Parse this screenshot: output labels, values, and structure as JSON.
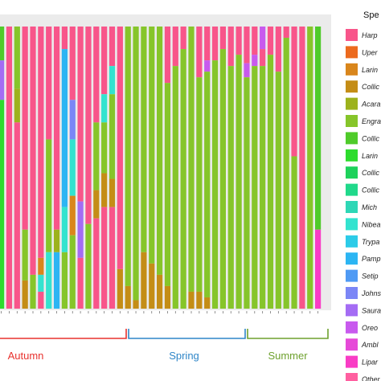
{
  "chart_data": {
    "type": "stacked-bar",
    "ylim": [
      0,
      1
    ],
    "grid": true,
    "legend_placement": "right",
    "legend": {
      "title": "Spe",
      "entries": [
        {
          "label": "Harp",
          "color": "#F8558A"
        },
        {
          "label": "Uper",
          "color": "#EC6A1E"
        },
        {
          "label": "Larin",
          "color": "#D9861C"
        },
        {
          "label": "Collic",
          "color": "#C48D16"
        },
        {
          "label": "Acara",
          "color": "#9DB21C"
        },
        {
          "label": "Engra",
          "color": "#86C52A"
        },
        {
          "label": "Collic",
          "color": "#4FCB2A"
        },
        {
          "label": "Larin",
          "color": "#2DDC2D"
        },
        {
          "label": "Collic",
          "color": "#1ED25B"
        },
        {
          "label": "Collic",
          "color": "#20D98B"
        },
        {
          "label": "Mich",
          "color": "#2ED7B6"
        },
        {
          "label": "Nibea",
          "color": "#33E3CF"
        },
        {
          "label": "Trypa",
          "color": "#2CCBE8"
        },
        {
          "label": "Pamp",
          "color": "#2CB5F3"
        },
        {
          "label": "Setip",
          "color": "#4F9AF4"
        },
        {
          "label": "Johns",
          "color": "#7B86F6"
        },
        {
          "label": "Saura",
          "color": "#A46CF4"
        },
        {
          "label": "Oreo",
          "color": "#C85AEE"
        },
        {
          "label": "Ambl",
          "color": "#E64AD8"
        },
        {
          "label": "Lipar",
          "color": "#F93CC5"
        },
        {
          "label": "Other",
          "color": "#FF5FA0"
        }
      ]
    },
    "bars": [
      {
        "segments": [
          [
            6,
            0.12
          ],
          [
            16,
            0.14
          ],
          [
            7,
            0.74
          ]
        ]
      },
      {
        "segments": [
          [
            0,
            1
          ]
        ]
      },
      {
        "segments": [
          [
            5,
            0.22
          ],
          [
            4,
            0.12
          ],
          [
            0,
            0.66
          ]
        ]
      },
      {
        "segments": [
          [
            0,
            0.72
          ],
          [
            5,
            0.18
          ],
          [
            3,
            0.1
          ]
        ]
      },
      {
        "segments": [
          [
            0,
            0.88
          ],
          [
            5,
            0.12
          ]
        ]
      },
      {
        "segments": [
          [
            0,
            0.82
          ],
          [
            2,
            0.06
          ],
          [
            11,
            0.06
          ],
          [
            0,
            0.06
          ]
        ]
      },
      {
        "segments": [
          [
            0,
            0.4
          ],
          [
            5,
            0.4
          ],
          [
            11,
            0.2
          ]
        ]
      },
      {
        "segments": [
          [
            0,
            0.72
          ],
          [
            4,
            0.08
          ],
          [
            13,
            0.2
          ]
        ]
      },
      {
        "segments": [
          [
            0,
            0.08
          ],
          [
            13,
            0.56
          ],
          [
            11,
            0.16
          ],
          [
            5,
            0.2
          ]
        ]
      },
      {
        "segments": [
          [
            0,
            0.26
          ],
          [
            15,
            0.14
          ],
          [
            11,
            0.2
          ],
          [
            2,
            0.14
          ],
          [
            5,
            0.26
          ]
        ]
      },
      {
        "segments": [
          [
            0,
            0.62
          ],
          [
            16,
            0.2
          ],
          [
            0,
            0.18
          ]
        ]
      },
      {
        "segments": [
          [
            0,
            0.7
          ],
          [
            5,
            0.3
          ]
        ]
      },
      {
        "segments": [
          [
            0,
            0.34
          ],
          [
            5,
            0.24
          ],
          [
            3,
            0.1
          ],
          [
            0,
            0.32
          ]
        ]
      },
      {
        "segments": [
          [
            0,
            0.24
          ],
          [
            11,
            0.1
          ],
          [
            5,
            0.18
          ],
          [
            3,
            0.12
          ],
          [
            0,
            0.36
          ]
        ]
      },
      {
        "segments": [
          [
            0,
            0.14
          ],
          [
            11,
            0.1
          ],
          [
            5,
            0.3
          ],
          [
            3,
            0.1
          ],
          [
            0,
            0.36
          ]
        ]
      },
      {
        "segments": [
          [
            0,
            0.86
          ],
          [
            3,
            0.14
          ]
        ]
      },
      {
        "segments": [
          [
            5,
            0.92
          ],
          [
            3,
            0.08
          ]
        ]
      },
      {
        "segments": [
          [
            5,
            0.97
          ],
          [
            3,
            0.03
          ]
        ]
      },
      {
        "segments": [
          [
            5,
            0.8
          ],
          [
            3,
            0.2
          ]
        ]
      },
      {
        "segments": [
          [
            5,
            0.84
          ],
          [
            3,
            0.16
          ]
        ]
      },
      {
        "segments": [
          [
            5,
            0.88
          ],
          [
            3,
            0.12
          ]
        ]
      },
      {
        "segments": [
          [
            0,
            0.2
          ],
          [
            5,
            0.72
          ],
          [
            3,
            0.08
          ]
        ]
      },
      {
        "segments": [
          [
            0,
            0.14
          ],
          [
            5,
            0.86
          ]
        ]
      },
      {
        "segments": [
          [
            0,
            0.08
          ],
          [
            5,
            0.92
          ]
        ]
      },
      {
        "segments": [
          [
            5,
            0.94
          ],
          [
            3,
            0.06
          ]
        ]
      },
      {
        "segments": [
          [
            0,
            0.18
          ],
          [
            5,
            0.76
          ],
          [
            3,
            0.06
          ]
        ]
      },
      {
        "segments": [
          [
            0,
            0.12
          ],
          [
            17,
            0.04
          ],
          [
            5,
            0.8
          ],
          [
            3,
            0.04
          ]
        ]
      },
      {
        "segments": [
          [
            0,
            0.12
          ],
          [
            5,
            0.88
          ]
        ]
      },
      {
        "segments": [
          [
            0,
            0.08
          ],
          [
            5,
            0.92
          ]
        ]
      },
      {
        "segments": [
          [
            0,
            0.14
          ],
          [
            5,
            0.86
          ]
        ]
      },
      {
        "segments": [
          [
            0,
            0.1
          ],
          [
            5,
            0.9
          ]
        ]
      },
      {
        "segments": [
          [
            0,
            0.13
          ],
          [
            17,
            0.05
          ],
          [
            5,
            0.82
          ]
        ]
      },
      {
        "segments": [
          [
            0,
            0.1
          ],
          [
            17,
            0.04
          ],
          [
            5,
            0.86
          ]
        ]
      },
      {
        "segments": [
          [
            17,
            0.08
          ],
          [
            0,
            0.06
          ],
          [
            5,
            0.86
          ]
        ]
      },
      {
        "segments": [
          [
            0,
            0.1
          ],
          [
            5,
            0.9
          ]
        ]
      },
      {
        "segments": [
          [
            0,
            0.16
          ],
          [
            5,
            0.84
          ]
        ]
      },
      {
        "segments": [
          [
            0,
            0.04
          ],
          [
            5,
            0.96
          ]
        ]
      },
      {
        "segments": [
          [
            0,
            0.46
          ],
          [
            5,
            0.54
          ]
        ]
      },
      {
        "segments": [
          [
            0,
            1
          ]
        ]
      },
      {
        "segments": [
          [
            5,
            1
          ]
        ]
      },
      {
        "segments": [
          [
            6,
            0.72
          ],
          [
            19,
            0.28
          ]
        ]
      }
    ],
    "season_groups": [
      {
        "label": "Autumn",
        "color": "#E8322E"
      },
      {
        "label": "Spring",
        "color": "#2F86C8"
      },
      {
        "label": "Summer",
        "color": "#6EA12E"
      }
    ]
  }
}
